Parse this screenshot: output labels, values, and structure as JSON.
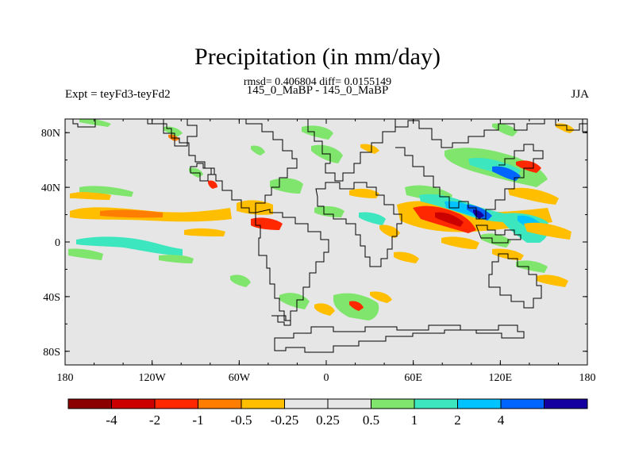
{
  "title": "Precipitation (in mm/day)",
  "subtitle": "rmsd= 0.406804 diff= 0.0155149",
  "left_label": "Expt = teyFd3-teyFd2",
  "center_label": "145_0_MaBP - 145_0_MaBP",
  "right_label": "JJA",
  "map": {
    "lon_range": [
      -180,
      180
    ],
    "lat_range": [
      -90,
      90
    ],
    "x_ticks": [
      {
        "value": -180,
        "label": "180"
      },
      {
        "value": -120,
        "label": "120W"
      },
      {
        "value": -60,
        "label": "60W"
      },
      {
        "value": 0,
        "label": "0"
      },
      {
        "value": 60,
        "label": "60E"
      },
      {
        "value": 120,
        "label": "120E"
      },
      {
        "value": 180,
        "label": "180"
      }
    ],
    "y_ticks": [
      {
        "value": 80,
        "label": "80N"
      },
      {
        "value": 40,
        "label": "40N"
      },
      {
        "value": 0,
        "label": "0"
      },
      {
        "value": -40,
        "label": "40S"
      },
      {
        "value": -80,
        "label": "80S"
      }
    ],
    "background_color": "#e6e6e6"
  },
  "colorbar": {
    "colors": [
      "#8b0000",
      "#cd0000",
      "#ff2800",
      "#ff7d00",
      "#ffbe00",
      "#e6e6e6",
      "#e6e6e6",
      "#7fe56c",
      "#3ce6be",
      "#00c3ff",
      "#0064ff",
      "#1400a0"
    ],
    "labels": [
      "-4",
      "-2",
      "-1",
      "-0.5",
      "-0.25",
      "0.25",
      "0.5",
      "1",
      "2",
      "4"
    ]
  }
}
